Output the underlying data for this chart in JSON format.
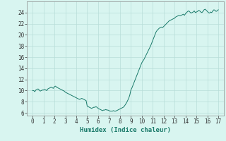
{
  "title": "",
  "xlabel": "Humidex (Indice chaleur)",
  "ylabel": "",
  "xlim": [
    -0.5,
    17.5
  ],
  "ylim": [
    5.5,
    26
  ],
  "xticks": [
    0,
    1,
    2,
    3,
    4,
    5,
    6,
    7,
    8,
    9,
    10,
    11,
    12,
    13,
    14,
    15,
    16,
    17
  ],
  "yticks": [
    6,
    8,
    10,
    12,
    14,
    16,
    18,
    20,
    22,
    24
  ],
  "line_color": "#1a7a6a",
  "bg_color": "#d8f5f0",
  "grid_color": "#b8ddd8",
  "x": [
    0.0,
    0.1,
    0.2,
    0.3,
    0.4,
    0.5,
    0.6,
    0.7,
    0.8,
    0.9,
    1.0,
    1.1,
    1.2,
    1.3,
    1.4,
    1.5,
    1.6,
    1.7,
    1.8,
    1.9,
    2.0,
    2.1,
    2.2,
    2.3,
    2.4,
    2.5,
    2.6,
    2.7,
    2.8,
    2.9,
    3.0,
    3.1,
    3.2,
    3.3,
    3.4,
    3.5,
    3.6,
    3.7,
    3.8,
    3.9,
    4.0,
    4.1,
    4.2,
    4.3,
    4.4,
    4.5,
    4.6,
    4.7,
    4.8,
    4.9,
    5.0,
    5.1,
    5.2,
    5.3,
    5.4,
    5.5,
    5.6,
    5.7,
    5.8,
    5.9,
    6.0,
    6.1,
    6.2,
    6.3,
    6.4,
    6.5,
    6.6,
    6.7,
    6.8,
    6.9,
    7.0,
    7.1,
    7.2,
    7.3,
    7.4,
    7.5,
    7.6,
    7.7,
    7.8,
    7.9,
    8.0,
    8.1,
    8.2,
    8.3,
    8.4,
    8.5,
    8.6,
    8.7,
    8.8,
    8.9,
    9.0,
    9.1,
    9.2,
    9.3,
    9.4,
    9.5,
    9.6,
    9.7,
    9.8,
    9.9,
    10.0,
    10.1,
    10.2,
    10.3,
    10.4,
    10.5,
    10.6,
    10.7,
    10.8,
    10.9,
    11.0,
    11.1,
    11.2,
    11.3,
    11.4,
    11.5,
    11.6,
    11.7,
    11.8,
    11.9,
    12.0,
    12.1,
    12.2,
    12.3,
    12.4,
    12.5,
    12.6,
    12.7,
    12.8,
    12.9,
    13.0,
    13.1,
    13.2,
    13.3,
    13.4,
    13.5,
    13.6,
    13.7,
    13.8,
    13.9,
    14.0,
    14.1,
    14.2,
    14.3,
    14.4,
    14.5,
    14.6,
    14.7,
    14.8,
    14.9,
    15.0,
    15.1,
    15.2,
    15.3,
    15.4,
    15.5,
    15.6,
    15.7,
    15.8,
    15.9,
    16.0,
    16.1,
    16.2,
    16.3,
    16.4,
    16.5,
    16.6,
    16.7,
    16.8,
    16.9,
    17.0
  ],
  "y": [
    10.0,
    10.0,
    9.8,
    10.1,
    10.2,
    10.3,
    10.1,
    9.9,
    10.0,
    10.1,
    10.1,
    10.2,
    10.1,
    10.0,
    10.3,
    10.4,
    10.5,
    10.6,
    10.5,
    10.4,
    10.7,
    10.8,
    10.6,
    10.5,
    10.4,
    10.3,
    10.2,
    10.1,
    10.0,
    9.9,
    9.7,
    9.6,
    9.5,
    9.4,
    9.3,
    9.2,
    9.1,
    9.0,
    8.9,
    8.8,
    8.7,
    8.6,
    8.5,
    8.4,
    8.5,
    8.6,
    8.5,
    8.4,
    8.3,
    8.2,
    7.2,
    7.1,
    7.0,
    6.9,
    6.8,
    6.9,
    7.0,
    7.0,
    7.1,
    7.0,
    6.8,
    6.7,
    6.6,
    6.5,
    6.4,
    6.5,
    6.5,
    6.6,
    6.5,
    6.5,
    6.4,
    6.3,
    6.3,
    6.3,
    6.4,
    6.3,
    6.3,
    6.4,
    6.5,
    6.6,
    6.7,
    6.8,
    6.9,
    7.0,
    7.2,
    7.5,
    7.8,
    8.2,
    8.6,
    9.2,
    10.1,
    10.5,
    11.0,
    11.5,
    12.0,
    12.5,
    13.0,
    13.5,
    14.0,
    14.5,
    15.0,
    15.3,
    15.6,
    16.0,
    16.4,
    16.8,
    17.2,
    17.6,
    18.0,
    18.5,
    19.0,
    19.5,
    20.0,
    20.5,
    20.8,
    21.0,
    21.2,
    21.3,
    21.4,
    21.3,
    21.5,
    21.7,
    21.9,
    22.1,
    22.3,
    22.5,
    22.6,
    22.7,
    22.8,
    22.9,
    23.0,
    23.2,
    23.3,
    23.4,
    23.5,
    23.4,
    23.5,
    23.6,
    23.7,
    23.5,
    23.8,
    24.0,
    24.2,
    24.3,
    24.1,
    23.9,
    24.0,
    24.1,
    24.3,
    24.0,
    24.1,
    24.2,
    24.4,
    24.3,
    24.1,
    24.0,
    24.2,
    24.5,
    24.6,
    24.4,
    24.2,
    24.0,
    23.9,
    24.1,
    24.0,
    24.3,
    24.5,
    24.4,
    24.2,
    24.3,
    24.5
  ]
}
